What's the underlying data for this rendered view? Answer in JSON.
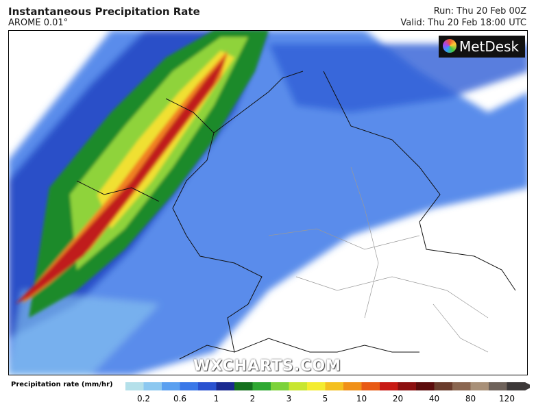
{
  "header": {
    "title": "Instantaneous Precipitation Rate",
    "subtitle": "AROME 0.01°",
    "run": "Run: Thu 20 Feb 00Z",
    "valid": "Valid: Thu 20 Feb 18:00 UTC"
  },
  "logo": "MetDesk",
  "watermark": "WXCHARTS.COM",
  "colorbar": {
    "label": "Precipitation rate (mm/hr)",
    "colors": [
      "#b4e0ea",
      "#8cc8f0",
      "#5aa0f0",
      "#3a78e8",
      "#2a52d0",
      "#1a2a90",
      "#14701e",
      "#2ea832",
      "#7cd23a",
      "#c8e630",
      "#f4ec30",
      "#f4c020",
      "#f09018",
      "#e85a14",
      "#c81a14",
      "#8c1010",
      "#5c0c0c",
      "#6a3c2c",
      "#8a6650",
      "#a89078",
      "#6e625a",
      "#3c3838"
    ],
    "ticks": [
      "0.2",
      "0.6",
      "1",
      "2",
      "3",
      "5",
      "10",
      "20",
      "40",
      "80",
      "120"
    ]
  }
}
